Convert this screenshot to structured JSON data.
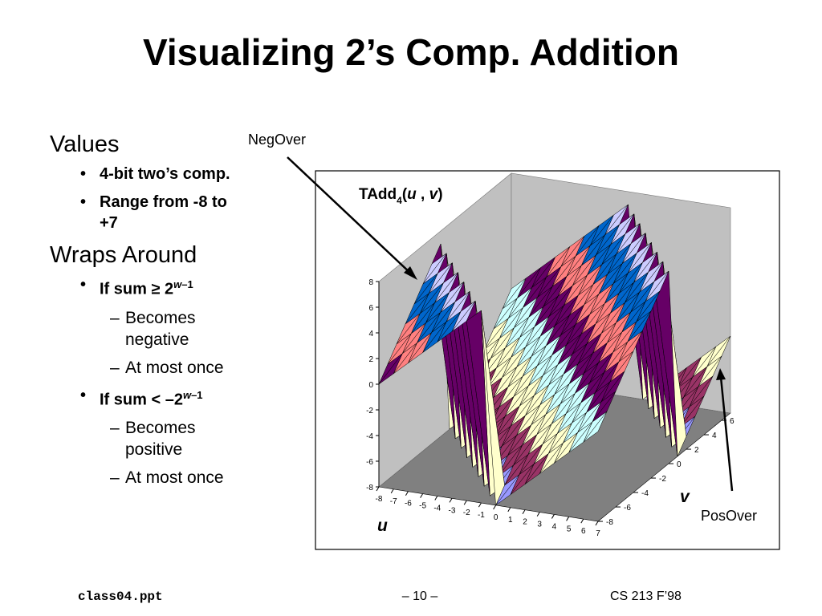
{
  "title": "Visualizing 2’s Comp. Addition",
  "body": [
    {
      "heading": "Values",
      "items": [
        {
          "text": "4-bit two’s comp."
        },
        {
          "text": "Range from -8 to +7"
        }
      ]
    },
    {
      "heading": "Wraps Around",
      "items": [
        {
          "text": "If sum ≥ 2",
          "sup_var": "w",
          "sup": "–1",
          "subitems": [
            "Becomes negative",
            "At most once"
          ]
        },
        {
          "text": "If sum < –2",
          "sup_var": "w",
          "sup": "–1",
          "subitems": [
            "Becomes positive",
            "At most once"
          ]
        }
      ]
    }
  ],
  "annotations": {
    "neg_over": "NegOver",
    "pos_over": "PosOver"
  },
  "footer": {
    "left": "class04.ppt",
    "center": "– 10 –",
    "right": "CS 213 F’98"
  },
  "chart_data": {
    "type": "surface",
    "title_parts": [
      "TAdd",
      "4",
      "(",
      "u",
      " , ",
      "v",
      ")"
    ],
    "x_label": "u",
    "y_label": "v",
    "x": [
      -8,
      -7,
      -6,
      -5,
      -4,
      -3,
      -2,
      -1,
      0,
      1,
      2,
      3,
      4,
      5,
      6,
      7
    ],
    "y": [
      -8,
      -7,
      -6,
      -5,
      -4,
      -3,
      -2,
      -1,
      0,
      1,
      2,
      3,
      4,
      5,
      6,
      7
    ],
    "z": [
      [
        0,
        1,
        2,
        3,
        4,
        5,
        6,
        7,
        -8,
        -7,
        -6,
        -5,
        -4,
        -3,
        -2,
        -1
      ],
      [
        1,
        2,
        3,
        4,
        5,
        6,
        7,
        -8,
        -7,
        -6,
        -5,
        -4,
        -3,
        -2,
        -1,
        0
      ],
      [
        2,
        3,
        4,
        5,
        6,
        7,
        -8,
        -7,
        -6,
        -5,
        -4,
        -3,
        -2,
        -1,
        0,
        1
      ],
      [
        3,
        4,
        5,
        6,
        7,
        -8,
        -7,
        -6,
        -5,
        -4,
        -3,
        -2,
        -1,
        0,
        1,
        2
      ],
      [
        4,
        5,
        6,
        7,
        -8,
        -7,
        -6,
        -5,
        -4,
        -3,
        -2,
        -1,
        0,
        1,
        2,
        3
      ],
      [
        5,
        6,
        7,
        -8,
        -7,
        -6,
        -5,
        -4,
        -3,
        -2,
        -1,
        0,
        1,
        2,
        3,
        4
      ],
      [
        6,
        7,
        -8,
        -7,
        -6,
        -5,
        -4,
        -3,
        -2,
        -1,
        0,
        1,
        2,
        3,
        4,
        5
      ],
      [
        7,
        -8,
        -7,
        -6,
        -5,
        -4,
        -3,
        -2,
        -1,
        0,
        1,
        2,
        3,
        4,
        5,
        6
      ],
      [
        -8,
        -7,
        -6,
        -5,
        -4,
        -3,
        -2,
        -1,
        0,
        1,
        2,
        3,
        4,
        5,
        6,
        7
      ],
      [
        -7,
        -6,
        -5,
        -4,
        -3,
        -2,
        -1,
        0,
        1,
        2,
        3,
        4,
        5,
        6,
        7,
        -8
      ],
      [
        -6,
        -5,
        -4,
        -3,
        -2,
        -1,
        0,
        1,
        2,
        3,
        4,
        5,
        6,
        7,
        -8,
        -7
      ],
      [
        -5,
        -4,
        -3,
        -2,
        -1,
        0,
        1,
        2,
        3,
        4,
        5,
        6,
        7,
        -8,
        -7,
        -6
      ],
      [
        -4,
        -3,
        -2,
        -1,
        0,
        1,
        2,
        3,
        4,
        5,
        6,
        7,
        -8,
        -7,
        -6,
        -5
      ],
      [
        -3,
        -2,
        -1,
        0,
        1,
        2,
        3,
        4,
        5,
        6,
        7,
        -8,
        -7,
        -6,
        -5,
        -4
      ],
      [
        -2,
        -1,
        0,
        1,
        2,
        3,
        4,
        5,
        6,
        7,
        -8,
        -7,
        -6,
        -5,
        -4,
        -3
      ],
      [
        -1,
        0,
        1,
        2,
        3,
        4,
        5,
        6,
        7,
        -8,
        -7,
        -6,
        -5,
        -4,
        -3,
        -2
      ]
    ],
    "xlim": [
      -8,
      7
    ],
    "ylim": [
      -8,
      7
    ],
    "zlim": [
      -8,
      8
    ],
    "xticks": [
      -8,
      -7,
      -6,
      -5,
      -4,
      -3,
      -2,
      -1,
      0,
      1,
      2,
      3,
      4,
      5,
      6,
      7
    ],
    "yticks": [
      -8,
      -6,
      -4,
      -2,
      0,
      2,
      4,
      6
    ],
    "zticks": [
      -8,
      -6,
      -4,
      -2,
      0,
      2,
      4,
      6,
      8
    ],
    "band_colors": [
      "#9999ff",
      "#993366",
      "#ffffcc",
      "#ccffff",
      "#660066",
      "#ff8080",
      "#0066cc",
      "#ccccff"
    ],
    "floor_color": "#808080",
    "wall_color": "#c0c0c0"
  }
}
